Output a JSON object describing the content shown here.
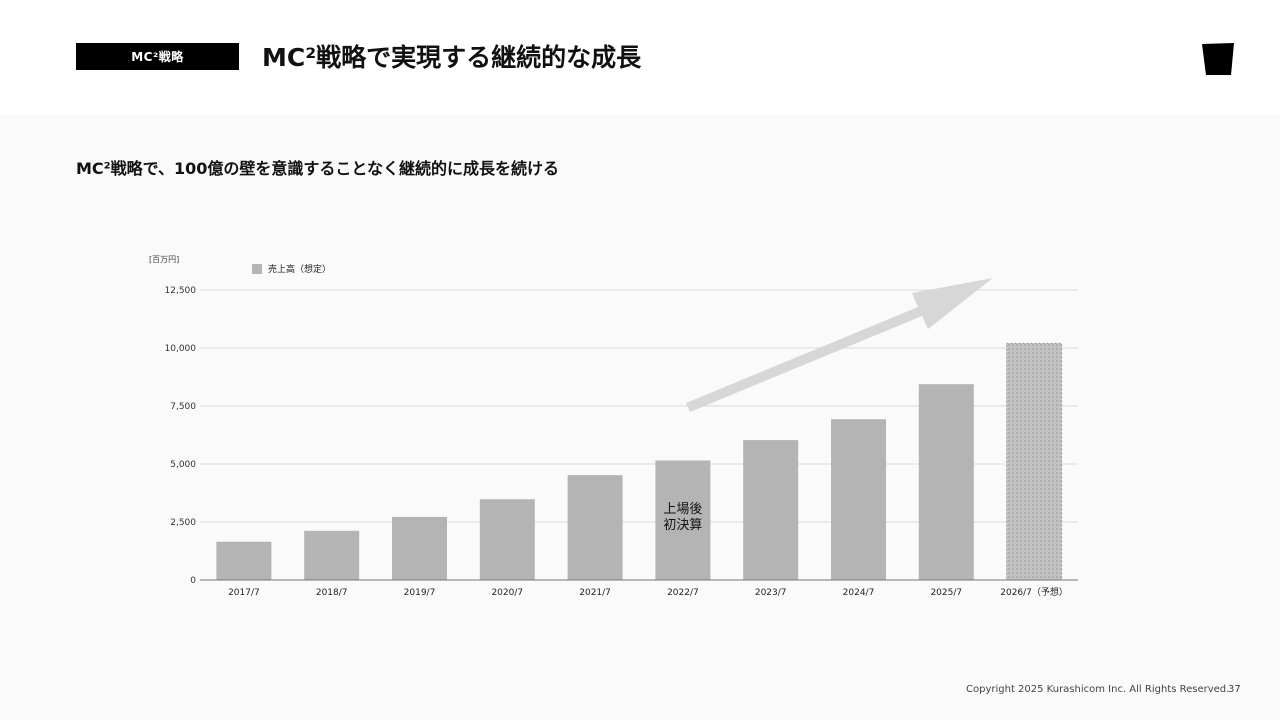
{
  "header": {
    "section_tag": "MC²戦略",
    "title": "MC²戦略で実現する継続的な成長"
  },
  "subtitle": "MC²戦略で、100億の壁を意識することなく継続的に成長を続ける",
  "chart_data": {
    "type": "bar",
    "unit_label": "[百万円]",
    "categories": [
      "2017/7",
      "2018/7",
      "2019/7",
      "2020/7",
      "2021/7",
      "2022/7",
      "2023/7",
      "2024/7",
      "2025/7",
      "2026/7（予想）"
    ],
    "series": [
      {
        "name": "売上高（想定）",
        "values": [
          1650,
          2120,
          2720,
          3480,
          4520,
          5150,
          6030,
          6930,
          8440,
          10200
        ],
        "forecast": [
          false,
          false,
          false,
          false,
          false,
          false,
          false,
          false,
          false,
          true
        ]
      }
    ],
    "ylim": [
      0,
      12500
    ],
    "yticks": [
      0,
      2500,
      5000,
      7500,
      10000,
      12500
    ],
    "ytick_labels": [
      "0",
      "2,500",
      "5,000",
      "7,500",
      "10,000",
      "12,500"
    ],
    "annotation": {
      "category_index": 5,
      "lines": [
        "上場後",
        "初決算"
      ]
    },
    "grid": true,
    "legend_position": "top-left",
    "bar_color": "#b4b4b4",
    "grid_color": "#d9d9d9",
    "arrow_color": "#d7d7d7"
  },
  "footer": {
    "copyright": "Copyright 2025 Kurashicom Inc. All Rights Reserved.",
    "page_number": "37"
  }
}
